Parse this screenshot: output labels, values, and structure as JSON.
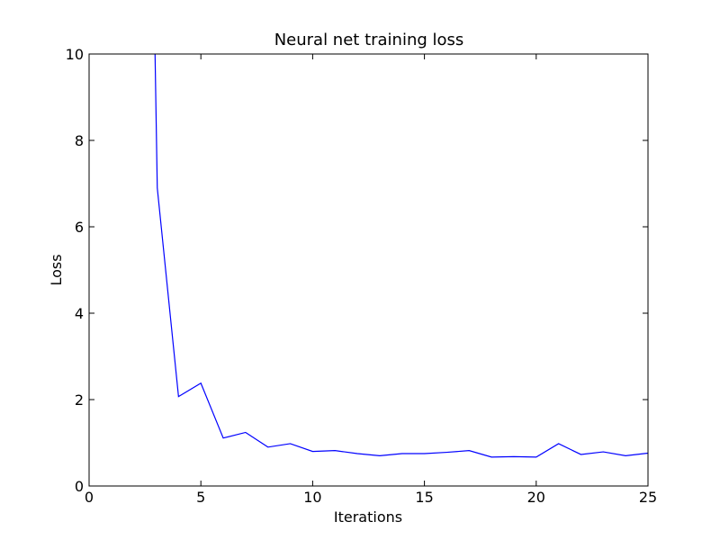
{
  "chart_data": {
    "type": "line",
    "title": "Neural net training loss",
    "xlabel": "Iterations",
    "ylabel": "Loss",
    "xlim": [
      0,
      25
    ],
    "ylim": [
      0,
      10
    ],
    "xticks": [
      0,
      5,
      10,
      15,
      20,
      25
    ],
    "yticks": [
      0,
      2,
      4,
      6,
      8,
      10
    ],
    "grid": false,
    "series": [
      {
        "color": "#0000ff",
        "x": [
          2.95,
          3.05,
          4,
          5,
          6,
          7,
          8,
          9,
          10,
          11,
          12,
          13,
          14,
          15,
          16,
          17,
          18,
          19,
          20,
          21,
          22,
          23,
          24,
          25
        ],
        "y": [
          10.0,
          6.9,
          2.07,
          2.38,
          1.11,
          1.24,
          0.9,
          0.98,
          0.8,
          0.82,
          0.75,
          0.7,
          0.75,
          0.75,
          0.78,
          0.82,
          0.67,
          0.68,
          0.67,
          0.98,
          0.73,
          0.79,
          0.7,
          0.76
        ]
      }
    ]
  }
}
